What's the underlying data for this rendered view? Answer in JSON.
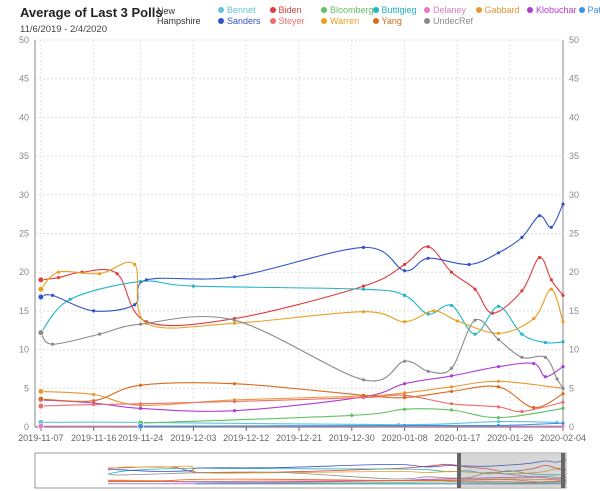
{
  "header": {
    "title": "Average of Last 3 Polls",
    "subtitle": "11/6/2019 - 2/4/2020",
    "state": "New\nHampshire"
  },
  "chart_data": {
    "type": "line",
    "title": "Average of Last 3 Polls",
    "subtitle": "11/6/2019 - 2/4/2020",
    "ylim": [
      0,
      50
    ],
    "y_ticks": [
      "0",
      "5",
      "10",
      "15",
      "20",
      "25",
      "30",
      "35",
      "40",
      "45",
      "50"
    ],
    "xlim": [
      "2019-11-06",
      "2020-02-04"
    ],
    "x_ticks": [
      "2019-11-07",
      "2019-11-16",
      "2019-11-24",
      "2019-12-03",
      "2019-12-12",
      "2019-12-21",
      "2019-12-30",
      "2020-01-08",
      "2020-01-17",
      "2020-01-26",
      "2020-02-04"
    ],
    "grid": true,
    "legend_position": "top",
    "series": [
      {
        "name": "Bennet",
        "color": "#63c5d4",
        "x": [
          "2019-11-07",
          "2019-11-24",
          "2020-01-07",
          "2020-01-24",
          "2020-02-03"
        ],
        "y": [
          0.6,
          0.6,
          0.3,
          0.7,
          0.6
        ]
      },
      {
        "name": "Biden",
        "color": "#df3d3d",
        "x": [
          "2019-11-07",
          "2019-11-10",
          "2019-11-14",
          "2019-11-20",
          "2019-11-25",
          "2019-12-10",
          "2020-01-01",
          "2020-01-08",
          "2020-01-12",
          "2020-01-16",
          "2020-01-20",
          "2020-01-23",
          "2020-01-28",
          "2020-01-31",
          "2020-02-02",
          "2020-02-04"
        ],
        "y": [
          19,
          19.3,
          20,
          19.8,
          13.6,
          14,
          18.2,
          21,
          23.3,
          20,
          17.8,
          14.7,
          17.6,
          21.9,
          19,
          17
        ]
      },
      {
        "name": "Bloomberg",
        "color": "#62c162",
        "x": [
          "2019-11-24",
          "2019-12-30",
          "2020-01-08",
          "2020-01-16",
          "2020-01-24",
          "2020-02-04"
        ],
        "y": [
          0.5,
          1.5,
          2.3,
          2.2,
          1.2,
          2.4
        ]
      },
      {
        "name": "Buttigieg",
        "color": "#22b5c6",
        "x": [
          "2019-11-07",
          "2019-11-12",
          "2019-11-24",
          "2019-12-03",
          "2020-01-01",
          "2020-01-08",
          "2020-01-12",
          "2020-01-16",
          "2020-01-20",
          "2020-01-24",
          "2020-01-28",
          "2020-02-01",
          "2020-02-04"
        ],
        "y": [
          12.2,
          16.5,
          18.8,
          18.2,
          17.8,
          17,
          14.6,
          15.7,
          12,
          15.6,
          12,
          10.9,
          11
        ]
      },
      {
        "name": "Delaney",
        "color": "#e57ac2",
        "x": [
          "2019-11-07",
          "2019-11-24",
          "2020-01-08",
          "2020-01-24",
          "2020-02-04"
        ],
        "y": [
          0.1,
          0.1,
          0.1,
          0.1,
          0.1
        ]
      },
      {
        "name": "Gabbard",
        "color": "#e89634",
        "x": [
          "2019-11-07",
          "2019-11-16",
          "2019-11-24",
          "2019-12-10",
          "2020-01-01",
          "2020-01-08",
          "2020-01-16",
          "2020-01-24",
          "2020-02-04"
        ],
        "y": [
          4.6,
          4.2,
          2.8,
          3.5,
          4,
          4.4,
          5.2,
          5.9,
          5
        ]
      },
      {
        "name": "Klobuchar",
        "color": "#b03bd6",
        "x": [
          "2019-11-07",
          "2019-11-16",
          "2019-11-24",
          "2019-12-10",
          "2020-01-01",
          "2020-01-08",
          "2020-01-16",
          "2020-01-24",
          "2020-01-30",
          "2020-02-01",
          "2020-02-04"
        ],
        "y": [
          3.5,
          3.1,
          2.4,
          2.1,
          3.9,
          5.6,
          6.6,
          7.8,
          8.2,
          6.5,
          7.8
        ]
      },
      {
        "name": "Patrick",
        "color": "#3a93e3",
        "x": [
          "2019-11-24",
          "2020-01-08",
          "2020-01-24",
          "2020-02-04"
        ],
        "y": [
          0.1,
          0.2,
          0.2,
          0.5
        ]
      },
      {
        "name": "Sanders",
        "color": "#2f54c9",
        "x": [
          "2019-11-07",
          "2019-11-09",
          "2019-11-16",
          "2019-11-23",
          "2019-11-25",
          "2019-12-10",
          "2020-01-01",
          "2020-01-08",
          "2020-01-12",
          "2020-01-19",
          "2020-01-24",
          "2020-01-28",
          "2020-01-31",
          "2020-02-02",
          "2020-02-04"
        ],
        "y": [
          16.8,
          17,
          15,
          15.8,
          19,
          19.4,
          23.2,
          20.2,
          21.8,
          21,
          22.5,
          24.5,
          27.3,
          25.8,
          28.8
        ]
      },
      {
        "name": "Steyer",
        "color": "#ef6d6d",
        "x": [
          "2019-11-07",
          "2019-11-16",
          "2019-11-24",
          "2019-12-10",
          "2020-01-01",
          "2020-01-08",
          "2020-01-16",
          "2020-01-24",
          "2020-01-28",
          "2020-02-04"
        ],
        "y": [
          2.7,
          2.9,
          3,
          3.3,
          3.8,
          4.1,
          3,
          2.6,
          2,
          3.2
        ]
      },
      {
        "name": "Warren",
        "color": "#e8a020",
        "x": [
          "2019-11-07",
          "2019-11-10",
          "2019-11-17",
          "2019-11-23",
          "2019-11-25",
          "2019-12-10",
          "2020-01-01",
          "2020-01-08",
          "2020-01-13",
          "2020-01-17",
          "2020-01-24",
          "2020-01-30",
          "2020-02-02",
          "2020-02-04"
        ],
        "y": [
          17.8,
          20,
          19.8,
          21,
          13.4,
          13.4,
          14.9,
          13.6,
          15,
          13.7,
          12.1,
          14,
          17.8,
          13.6
        ]
      },
      {
        "name": "Yang",
        "color": "#d96a1f",
        "x": [
          "2019-11-07",
          "2019-11-16",
          "2019-11-24",
          "2019-12-10",
          "2020-01-01",
          "2020-01-08",
          "2020-01-16",
          "2020-01-24",
          "2020-01-30",
          "2020-02-04"
        ],
        "y": [
          3.6,
          3.4,
          5.4,
          5.6,
          4.1,
          3.8,
          4.6,
          5.2,
          2.5,
          4.3
        ]
      },
      {
        "name": "UndecRef",
        "color": "#8a8a8a",
        "x": [
          "2019-11-07",
          "2019-11-09",
          "2019-11-17",
          "2019-11-24",
          "2019-12-10",
          "2020-01-01",
          "2020-01-08",
          "2020-01-12",
          "2020-01-16",
          "2020-01-20",
          "2020-01-24",
          "2020-01-28",
          "2020-02-01",
          "2020-02-03",
          "2020-02-04"
        ],
        "y": [
          12.2,
          10.7,
          12,
          13.3,
          13.8,
          6.1,
          8.5,
          7.2,
          7.6,
          13.8,
          11.3,
          9,
          9,
          6.2,
          5
        ]
      }
    ],
    "navigator": true
  }
}
